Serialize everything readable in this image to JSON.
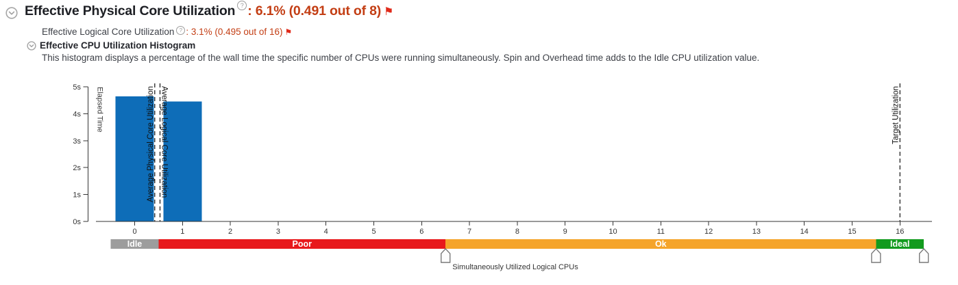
{
  "header": {
    "title": "Effective Physical Core Utilization",
    "physical_value": ": 6.1% (0.491 out of 8)",
    "logical_label": "Effective Logical Core Utilization",
    "logical_value": ": 3.1% (0.495 out of 16)",
    "histogram_title": "Effective CPU Utilization Histogram",
    "histogram_description": "This histogram displays a percentage of the wall time the specific number of CPUs were running simultaneously. Spin and Overhead time adds to the Idle CPU utilization value."
  },
  "icons": {
    "collapse_glyph": "chevron-down-circle",
    "help_glyph": "?",
    "flag_glyph": "⚑"
  },
  "colors": {
    "value_red": "#c33e14",
    "flag_red": "#e02a1a",
    "bar_blue": "#0e6db8",
    "band_idle": "#9d9d9d",
    "band_poor": "#e8191c",
    "band_ok": "#f5a42a",
    "band_ideal": "#129b1e",
    "axis": "#333333"
  },
  "chart_data": {
    "type": "bar",
    "title": "Effective CPU Utilization Histogram",
    "xlabel": "Simultaneously Utilized Logical CPUs",
    "ylabel": "Elapsed Time",
    "categories": [
      0,
      1
    ],
    "values": [
      4.65,
      4.45
    ],
    "y_ticks": [
      0,
      1,
      2,
      3,
      4,
      5
    ],
    "y_tick_suffix": "s",
    "ylim": [
      0,
      5
    ],
    "x_ticks": [
      0,
      1,
      2,
      3,
      4,
      5,
      6,
      7,
      8,
      9,
      10,
      11,
      12,
      13,
      14,
      15,
      16
    ],
    "bar_color": "#0e6db8",
    "reference_lines": [
      {
        "label": "Average Physical Core Utilization",
        "value": 0.491,
        "x": 0.42,
        "side": "left"
      },
      {
        "label": "Average Logical Core Utilization",
        "value": 0.495,
        "x": 0.53,
        "side": "right"
      },
      {
        "label": "Target Utilization",
        "value": 16,
        "x": 16,
        "side": "left"
      }
    ],
    "utilization_bands": [
      {
        "label": "Idle",
        "from": -0.5,
        "to": 0.5,
        "color": "#9d9d9d"
      },
      {
        "label": "Poor",
        "from": 0.5,
        "to": 6.5,
        "color": "#e8191c"
      },
      {
        "label": "Ok",
        "from": 6.5,
        "to": 15.5,
        "color": "#f5a42a"
      },
      {
        "label": "Ideal",
        "from": 15.5,
        "to": 16.5,
        "color": "#129b1e"
      }
    ],
    "slider_handles_x": [
      6.5,
      15.5,
      16.5
    ]
  }
}
